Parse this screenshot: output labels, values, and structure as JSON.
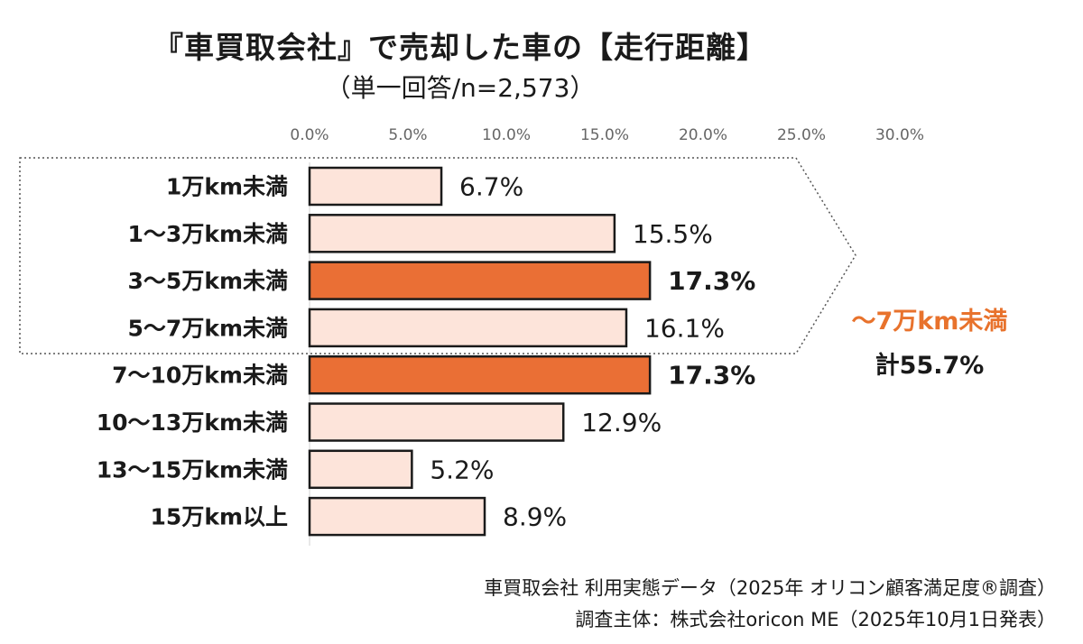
{
  "title": "『車買取会社』で売却した車の【走行距離】",
  "subtitle": "（単一回答/n=2,573）",
  "callout": {
    "label": "～7万km未満",
    "total": "計55.7%",
    "accent_color": "#e8722c"
  },
  "notes": {
    "line1": "車買取会社 利用実態データ（2025年 オリコン顧客満足度®調査）",
    "line2": "調査主体：株式会社oricon ME（2025年10月1日発表）"
  },
  "chart_data": {
    "type": "bar",
    "orientation": "horizontal",
    "categories": [
      "1万km未満",
      "1～3万km未満",
      "3～5万km未満",
      "5～7万km未満",
      "7～10万km未満",
      "10～13万km未満",
      "13～15万km未満",
      "15万km以上"
    ],
    "values": [
      6.7,
      15.5,
      17.3,
      16.1,
      17.3,
      12.9,
      5.2,
      8.9
    ],
    "value_labels": [
      "6.7%",
      "15.5%",
      "17.3%",
      "16.1%",
      "17.3%",
      "12.9%",
      "5.2%",
      "8.9%"
    ],
    "highlighted": [
      false,
      false,
      true,
      false,
      true,
      false,
      false,
      false
    ],
    "xlim": [
      0,
      30
    ],
    "ticks": [
      "0.0%",
      "5.0%",
      "10.0%",
      "15.0%",
      "20.0%",
      "25.0%",
      "30.0%"
    ],
    "grid": false,
    "colors": {
      "normal_fill": "#fde4da",
      "highlight_fill": "#ea6f35",
      "stroke": "#1a1a1a"
    }
  }
}
